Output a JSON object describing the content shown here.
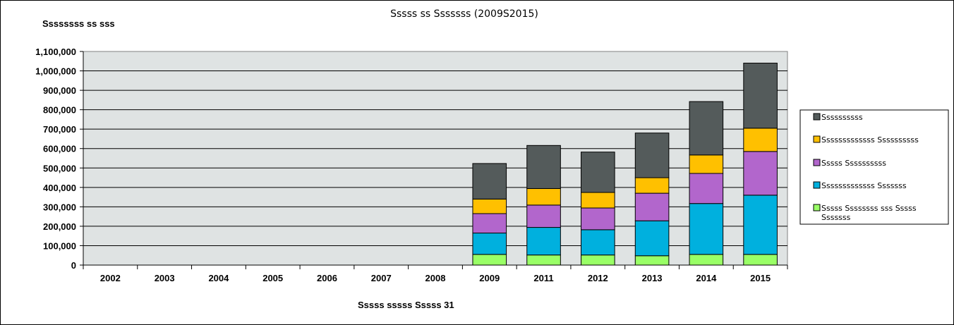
{
  "chart_data": {
    "type": "bar",
    "stacked": true,
    "title": "Sssss ss Sssssss (2009S2015)",
    "ylabel": "Ssssssss ss sss",
    "xlabel": "Sssss sssss Sssss 31",
    "categories": [
      "2002",
      "2003",
      "2004",
      "2005",
      "2006",
      "2007",
      "2008",
      "2009",
      "2011",
      "2012",
      "2013",
      "2014",
      "2015"
    ],
    "y_ticks": [
      "0",
      "100,000",
      "200,000",
      "300,000",
      "400,000",
      "500,000",
      "600,000",
      "700,000",
      "800,000",
      "900,000",
      "1,000,000",
      "1,100,000"
    ],
    "ylim": [
      0,
      1100000
    ],
    "grid": true,
    "legend_position": "right",
    "plot_background": "#dfe3e3",
    "series": [
      {
        "name": "Sssss Ssssssss sss Sssss Sssssss",
        "color": "#99ff66",
        "values": [
          null,
          null,
          null,
          null,
          null,
          null,
          null,
          55000,
          52000,
          52000,
          48000,
          55000,
          55000
        ]
      },
      {
        "name": "Sssssssssssss Sssssss",
        "color": "#00b0de",
        "values": [
          null,
          null,
          null,
          null,
          null,
          null,
          null,
          110000,
          142000,
          130000,
          180000,
          262000,
          305000
        ]
      },
      {
        "name": "Sssss Ssssssssss",
        "color": "#b266cc",
        "values": [
          null,
          null,
          null,
          null,
          null,
          null,
          null,
          100000,
          115000,
          112000,
          142000,
          155000,
          225000
        ]
      },
      {
        "name": "Sssssssssssss Ssssssssss",
        "color": "#ffc000",
        "values": [
          null,
          null,
          null,
          null,
          null,
          null,
          null,
          75000,
          85000,
          80000,
          80000,
          95000,
          120000
        ]
      },
      {
        "name": "Ssssssssss",
        "color": "#545b5b",
        "values": [
          null,
          null,
          null,
          null,
          null,
          null,
          null,
          183000,
          222000,
          208000,
          230000,
          275000,
          335000
        ]
      }
    ],
    "legend_order": [
      4,
      3,
      2,
      1,
      0
    ]
  }
}
